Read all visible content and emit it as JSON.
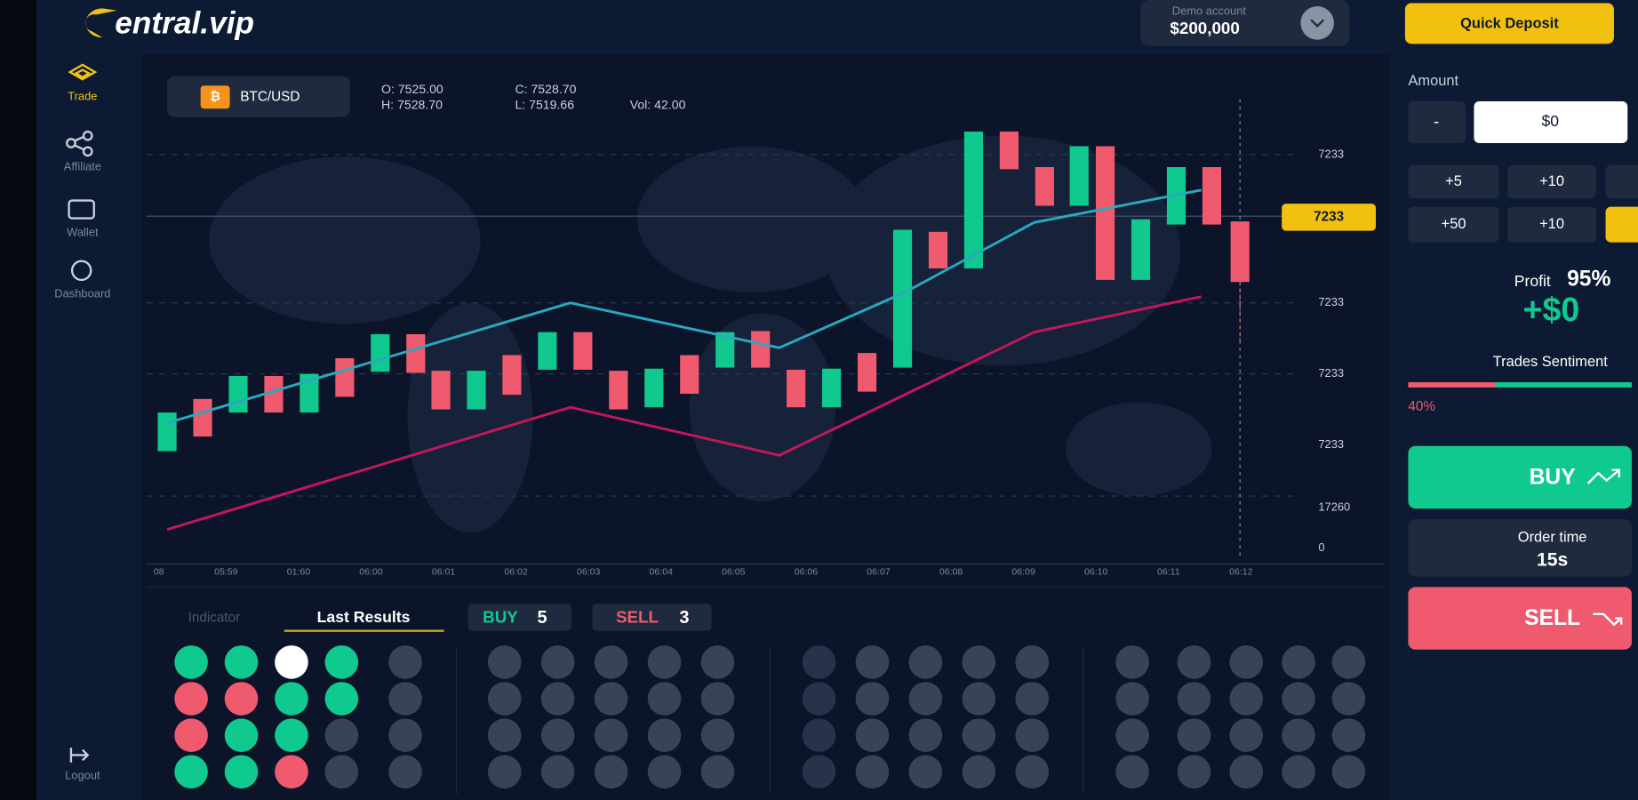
{
  "header": {
    "brand": "entral.vip",
    "account_label": "Demo account",
    "balance": "$200,000",
    "deposit_button": "Quick Deposit"
  },
  "sidebar": {
    "items": [
      "Trade",
      "Affiliate",
      "Wallet",
      "Dashboard"
    ],
    "logout": "Logout"
  },
  "chart": {
    "pair": "BTC/USD",
    "open": "O: 7525.00",
    "close": "C: 7528.70",
    "high": "H: 7528.70",
    "low": "L: 7519.66",
    "volume": "Vol: 42.00",
    "price_tag": "7233",
    "y_labels": [
      "7233",
      "7233",
      "7233",
      "7233",
      "17260",
      "0"
    ],
    "x_labels": [
      "08",
      "05:59",
      "01:60",
      "06:00",
      "06:01",
      "06:02",
      "06:03",
      "06:04",
      "06:05",
      "06:06",
      "06:07",
      "06:08",
      "06:09",
      "06:10",
      "06:11",
      "06:12"
    ]
  },
  "results": {
    "tabs": [
      "Indicator",
      "Last Results"
    ],
    "buy_label": "BUY",
    "buy_count": "5",
    "sell_label": "SELL",
    "sell_count": "3"
  },
  "trade_panel": {
    "amount_label": "Amount",
    "minus": "-",
    "amount": "$0",
    "quick_amounts": [
      "+5",
      "+10",
      "+50",
      "+10"
    ],
    "profit_label": "Profit",
    "profit_percent": "95%",
    "profit_value": "+$0",
    "sentiment_label": "Trades Sentiment",
    "sentiment_value": "40%",
    "buy_button": "BUY",
    "order_time_label": "Order time",
    "order_time": "15s",
    "sell_button": "SELL"
  }
}
